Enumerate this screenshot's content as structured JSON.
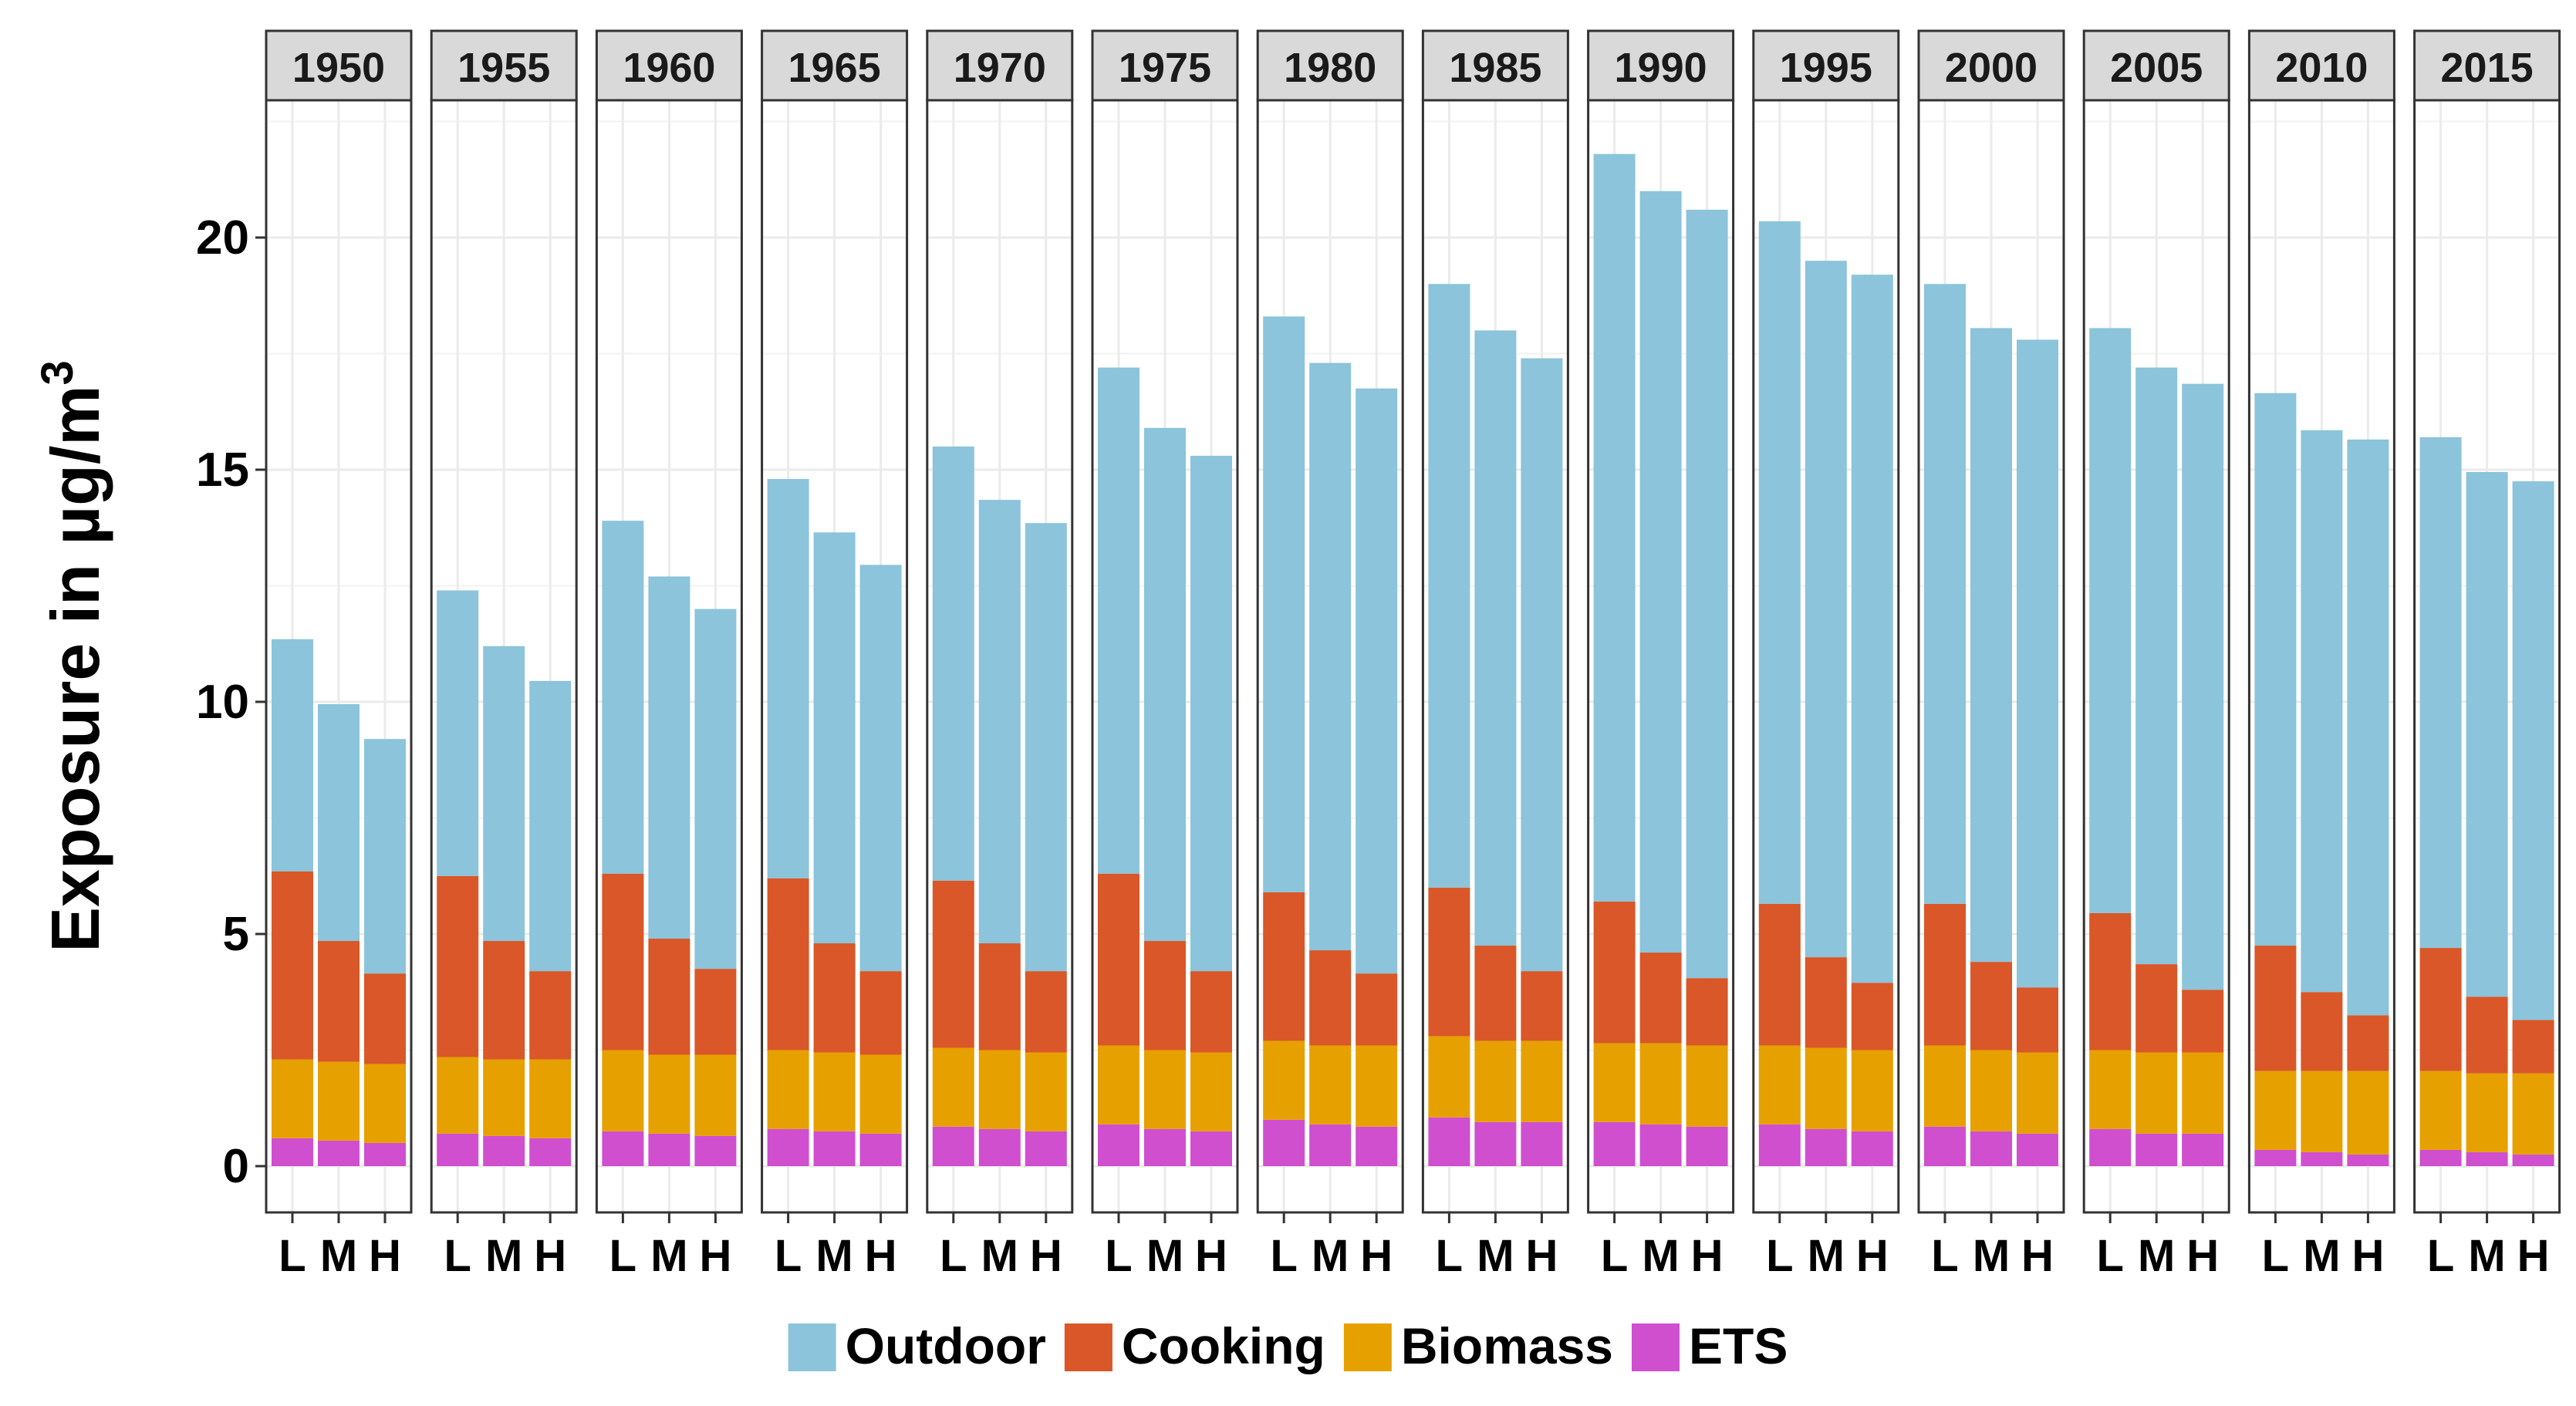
{
  "chart_data": {
    "type": "bar",
    "stacked": true,
    "facet_by": "year",
    "panels": [
      "1950",
      "1955",
      "1960",
      "1965",
      "1970",
      "1975",
      "1980",
      "1985",
      "1990",
      "1995",
      "2000",
      "2005",
      "2010",
      "2015"
    ],
    "categories": [
      "L",
      "M",
      "H"
    ],
    "ylabel": "Exposure in µg/m",
    "ylabel_superscript": "3",
    "ylim": [
      -1,
      23
    ],
    "yticks": [
      0,
      5,
      10,
      15,
      20
    ],
    "legend_position": "bottom",
    "grid": true,
    "series": [
      {
        "name": "Outdoor",
        "color": "#8bc4db",
        "values": [
          [
            5.0,
            5.1,
            5.05
          ],
          [
            6.15,
            6.35,
            6.25
          ],
          [
            7.6,
            7.8,
            7.75
          ],
          [
            8.6,
            8.85,
            8.75
          ],
          [
            9.35,
            9.55,
            9.65
          ],
          [
            10.9,
            11.05,
            11.1
          ],
          [
            12.4,
            12.65,
            12.6
          ],
          [
            13.0,
            13.25,
            13.2
          ],
          [
            16.1,
            16.4,
            16.55
          ],
          [
            14.7,
            15.0,
            15.25
          ],
          [
            13.35,
            13.65,
            13.95
          ],
          [
            12.6,
            12.85,
            13.05
          ],
          [
            11.9,
            12.1,
            12.4
          ],
          [
            11.0,
            11.3,
            11.6
          ]
        ]
      },
      {
        "name": "Cooking",
        "color": "#d95728",
        "values": [
          [
            4.05,
            2.6,
            1.95
          ],
          [
            3.9,
            2.55,
            1.9
          ],
          [
            3.8,
            2.5,
            1.85
          ],
          [
            3.7,
            2.35,
            1.8
          ],
          [
            3.6,
            2.3,
            1.75
          ],
          [
            3.7,
            2.35,
            1.75
          ],
          [
            3.2,
            2.05,
            1.55
          ],
          [
            3.2,
            2.05,
            1.5
          ],
          [
            3.05,
            1.95,
            1.45
          ],
          [
            3.05,
            1.95,
            1.45
          ],
          [
            3.05,
            1.9,
            1.4
          ],
          [
            2.95,
            1.9,
            1.35
          ],
          [
            2.7,
            1.7,
            1.2
          ],
          [
            2.65,
            1.65,
            1.15
          ]
        ]
      },
      {
        "name": "Biomass",
        "color": "#e6a000",
        "values": [
          [
            1.7,
            1.7,
            1.7
          ],
          [
            1.65,
            1.65,
            1.7
          ],
          [
            1.75,
            1.7,
            1.75
          ],
          [
            1.7,
            1.7,
            1.7
          ],
          [
            1.7,
            1.7,
            1.7
          ],
          [
            1.7,
            1.7,
            1.7
          ],
          [
            1.7,
            1.7,
            1.75
          ],
          [
            1.75,
            1.75,
            1.75
          ],
          [
            1.7,
            1.75,
            1.75
          ],
          [
            1.7,
            1.75,
            1.75
          ],
          [
            1.75,
            1.75,
            1.75
          ],
          [
            1.7,
            1.75,
            1.75
          ],
          [
            1.7,
            1.75,
            1.8
          ],
          [
            1.7,
            1.7,
            1.75
          ]
        ]
      },
      {
        "name": "ETS",
        "color": "#cf4fcf",
        "values": [
          [
            0.6,
            0.55,
            0.5
          ],
          [
            0.7,
            0.65,
            0.6
          ],
          [
            0.75,
            0.7,
            0.65
          ],
          [
            0.8,
            0.75,
            0.7
          ],
          [
            0.85,
            0.8,
            0.75
          ],
          [
            0.9,
            0.8,
            0.75
          ],
          [
            1.0,
            0.9,
            0.85
          ],
          [
            1.05,
            0.95,
            0.95
          ],
          [
            0.95,
            0.9,
            0.85
          ],
          [
            0.9,
            0.8,
            0.75
          ],
          [
            0.85,
            0.75,
            0.7
          ],
          [
            0.8,
            0.7,
            0.7
          ],
          [
            0.35,
            0.3,
            0.25
          ],
          [
            0.35,
            0.3,
            0.25
          ]
        ]
      }
    ]
  }
}
